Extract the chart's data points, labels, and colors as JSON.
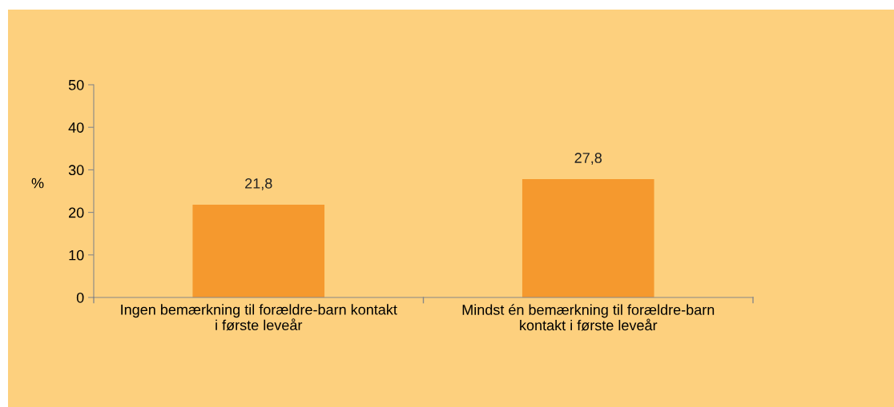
{
  "chart_data": {
    "type": "bar",
    "ylabel": "%",
    "categories": [
      "Ingen bemærkning til forældre-barn kontakt\ni første leveår",
      "Mindst én bemærkning til forældre-barn\nkontakt i første leveår"
    ],
    "values": [
      21.8,
      27.8
    ],
    "value_labels": [
      "21,8",
      "27,8"
    ],
    "color": "#f5992e",
    "ylim": [
      0,
      50
    ],
    "yticks": [
      0,
      10,
      20,
      30,
      40,
      50
    ],
    "grid": false,
    "legend": false
  }
}
